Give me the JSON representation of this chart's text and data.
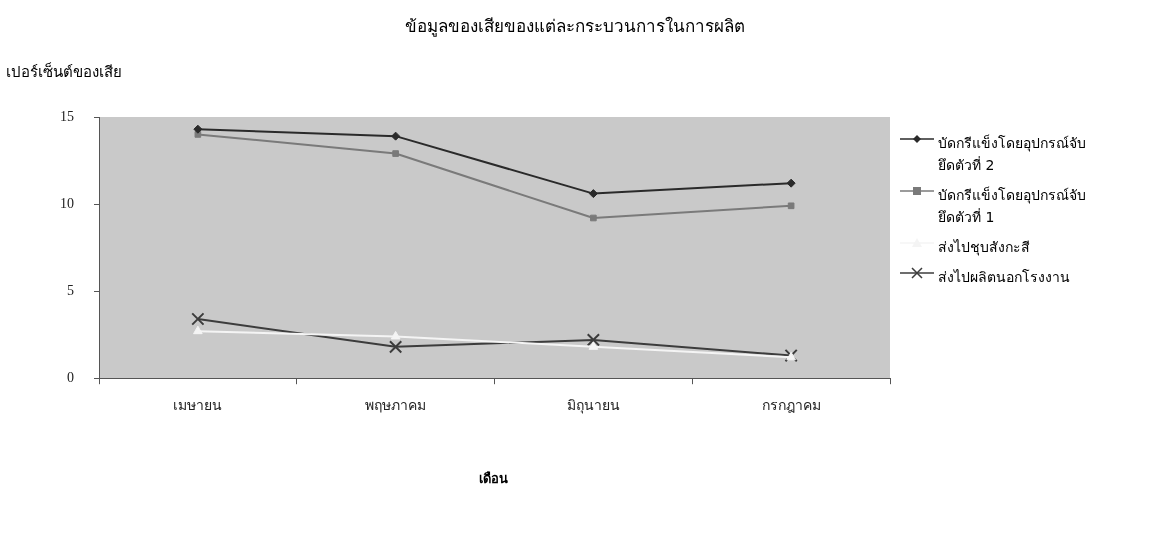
{
  "chart_data": {
    "type": "line",
    "title": "ข้อมูลของเสียของแต่ละกระบวนการในการผลิต",
    "ylabel": "เปอร์เซ็นต์ของเสีย",
    "xlabel": "เดือน",
    "categories": [
      "เมษายน",
      "พฤษภาคม",
      "มิถุนายน",
      "กรกฎาคม"
    ],
    "ylim": [
      0,
      15
    ],
    "yticks": [
      0,
      5,
      10,
      15
    ],
    "grid": false,
    "legend": "right",
    "line_style": "solid",
    "series": [
      {
        "name": "บัดกรีแข็งโดยอุปกรณ์จับยึดตัวที่ 2",
        "color": "#2a2a2a",
        "marker": "diamond",
        "values": [
          14.3,
          13.9,
          10.6,
          11.2
        ]
      },
      {
        "name": "บัดกรีแข็งโดยอุปกรณ์จับยึดตัวที่ 1",
        "color": "#7a7a7a",
        "marker": "square",
        "values": [
          14.0,
          12.9,
          9.2,
          9.9
        ]
      },
      {
        "name": "ส่งไปชุบสังกะสี",
        "color": "#f4f4f4",
        "marker": "triangle",
        "values": [
          2.7,
          2.4,
          1.8,
          1.2
        ]
      },
      {
        "name": "ส่งไปผลิตนอกโรงงาน",
        "color": "#3c3c3c",
        "marker": "cross",
        "values": [
          3.4,
          1.8,
          2.2,
          1.3
        ]
      }
    ]
  }
}
